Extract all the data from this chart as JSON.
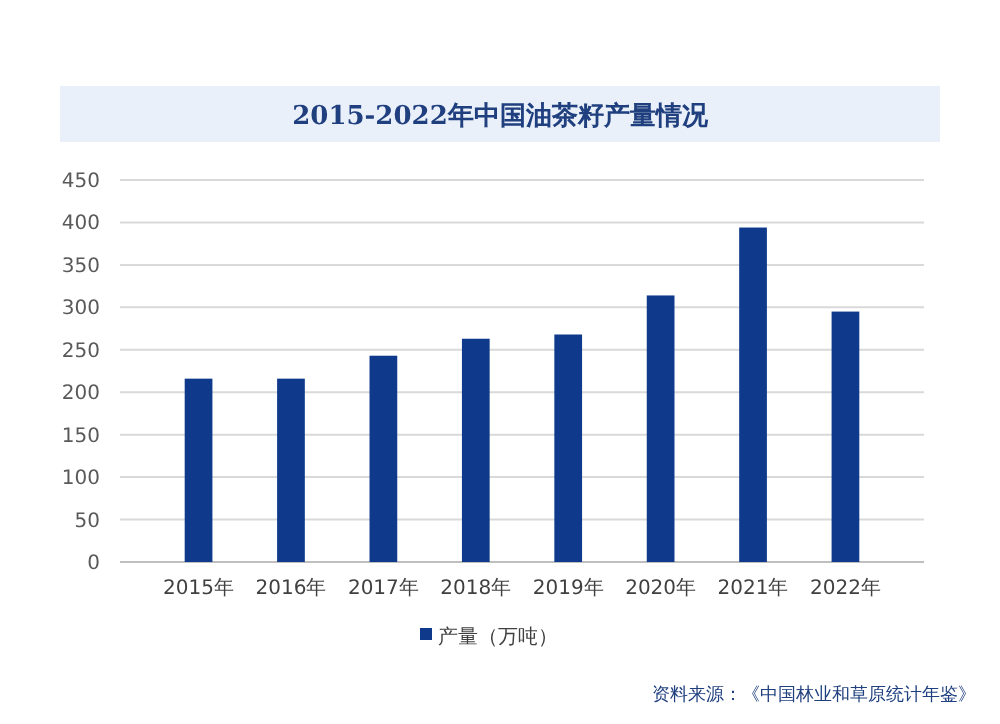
{
  "chart_data": {
    "type": "bar",
    "title": "2015-2022年中国油茶籽产量情况",
    "categories": [
      "2015年",
      "2016年",
      "2017年",
      "2018年",
      "2019年",
      "2020年",
      "2021年",
      "2022年"
    ],
    "series": [
      {
        "name": "产量（万吨）",
        "color": "#0f3a8c",
        "values": [
          216,
          216,
          243,
          263,
          268,
          314,
          394,
          295
        ]
      }
    ],
    "ylim": [
      0,
      450
    ],
    "yticks": [
      0,
      50,
      100,
      150,
      200,
      250,
      300,
      350,
      400,
      450
    ],
    "grid": "y",
    "legend": "bottom",
    "annotations": [
      "资料来源：《中国林业和草原统计年鉴》"
    ]
  }
}
